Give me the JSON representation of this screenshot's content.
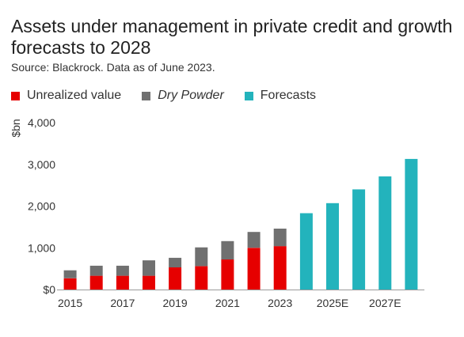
{
  "title": "Assets under management in private credit and growth forecasts to 2028",
  "source": "Source: Blackrock. Data as of June 2023.",
  "legend": [
    {
      "label": "Unrealized value",
      "color": "#e60000",
      "italic": false
    },
    {
      "label": "Dry Powder",
      "color": "#707070",
      "italic": true
    },
    {
      "label": "Forecasts",
      "color": "#23b3bc",
      "italic": false
    }
  ],
  "chart_data": {
    "type": "bar",
    "stacked": true,
    "ylabel": "$bn",
    "ylim": [
      0,
      4000
    ],
    "yticks": [
      0,
      1000,
      2000,
      3000,
      4000
    ],
    "ytick_labels": [
      "$0",
      "1,000",
      "2,000",
      "3,000",
      "4,000"
    ],
    "categories": [
      "2015",
      "2016",
      "2017",
      "2018",
      "2019",
      "2020",
      "2021",
      "2022",
      "2023",
      "2024E",
      "2025E",
      "2026E",
      "2027E",
      "2028E"
    ],
    "xtick_labels": [
      "2015",
      "",
      "2017",
      "",
      "2019",
      "",
      "2021",
      "",
      "2023",
      "",
      "2025E",
      "",
      "2027E",
      ""
    ],
    "series": [
      {
        "name": "Unrealized value",
        "color": "#e60000",
        "values": [
          270,
          330,
          330,
          330,
          530,
          560,
          720,
          1000,
          1040,
          0,
          0,
          0,
          0,
          0
        ]
      },
      {
        "name": "Dry Powder",
        "color": "#707070",
        "values": [
          190,
          240,
          240,
          370,
          230,
          450,
          440,
          380,
          420,
          0,
          0,
          0,
          0,
          0
        ]
      },
      {
        "name": "Forecasts",
        "color": "#23b3bc",
        "values": [
          0,
          0,
          0,
          0,
          0,
          0,
          0,
          0,
          0,
          1830,
          2070,
          2400,
          2710,
          3130
        ]
      }
    ],
    "grid": false,
    "legend_position": "top"
  }
}
